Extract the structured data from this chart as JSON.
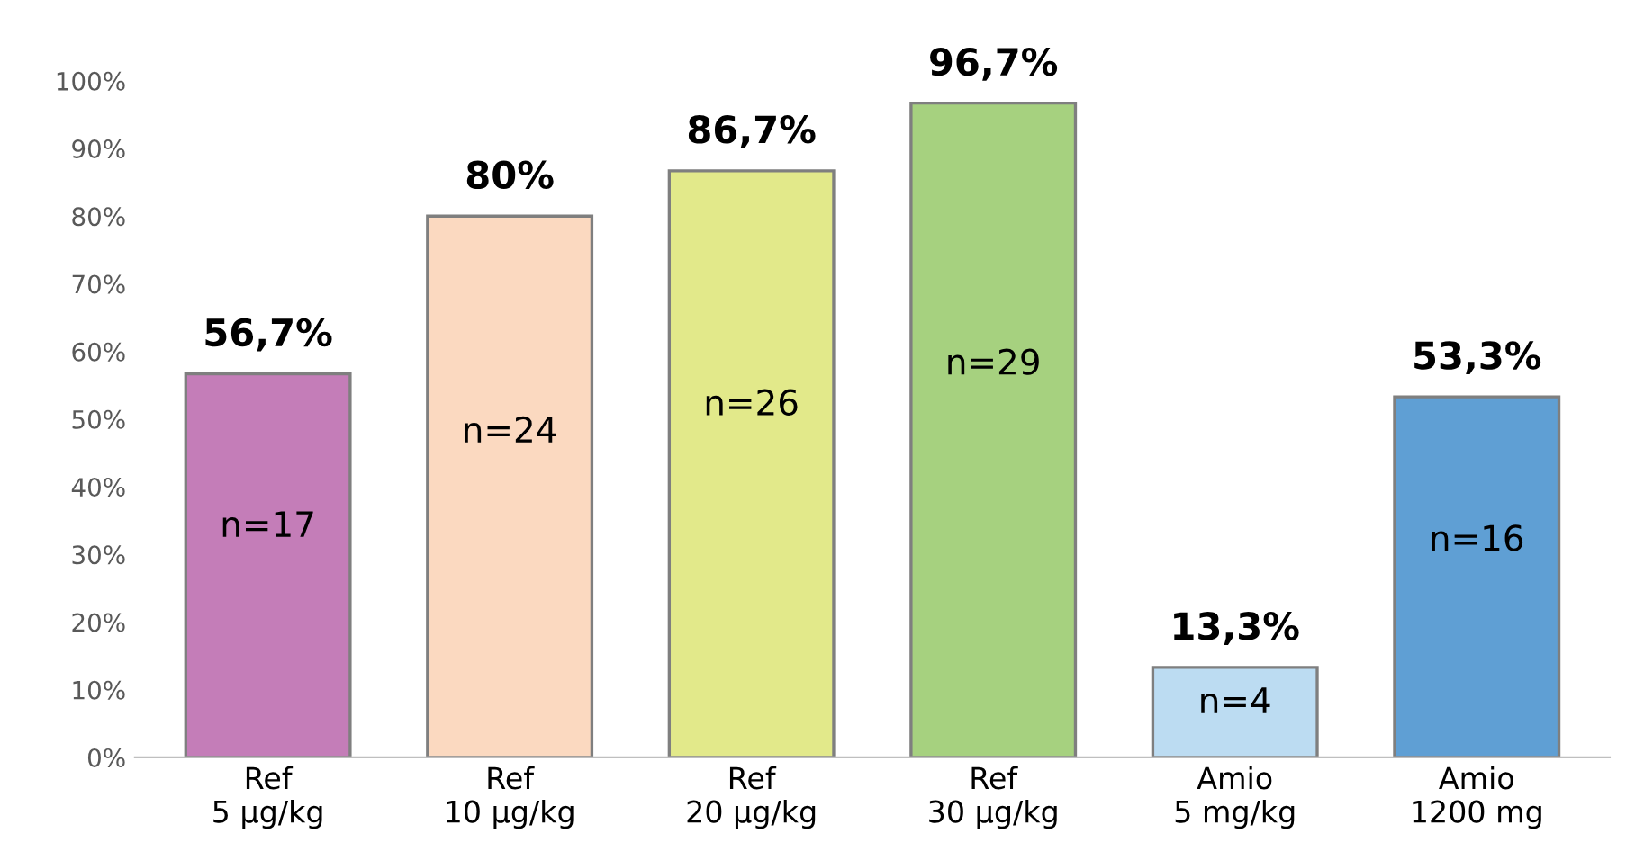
{
  "chart_data": {
    "type": "bar",
    "categories": [
      "Ref\n5 µg/kg",
      "Ref\n10 µg/kg",
      "Ref\n20 µg/kg",
      "Ref\n30 µg/kg",
      "Amio\n5 mg/kg",
      "Amio\n1200 mg"
    ],
    "values": [
      56.7,
      80,
      86.7,
      96.7,
      13.3,
      53.3
    ],
    "colors": [
      "#c47db8",
      "#fbd9c0",
      "#e2e98a",
      "#a6d17f",
      "#bcdcf2",
      "#5f9fd4"
    ],
    "value_labels": [
      "56,7%",
      "80%",
      "86,7%",
      "96,7%",
      "13,3%",
      "53,3%"
    ],
    "ylim": [
      0,
      100
    ],
    "yticks": [
      {
        "value": 0,
        "label": "0%"
      },
      {
        "value": 10,
        "label": "10%"
      },
      {
        "value": 20,
        "label": "20%"
      },
      {
        "value": 30,
        "label": "30%"
      },
      {
        "value": 40,
        "label": "40%"
      },
      {
        "value": 50,
        "label": "50%"
      },
      {
        "value": 60,
        "label": "60%"
      },
      {
        "value": 70,
        "label": "70%"
      },
      {
        "value": 80,
        "label": "80%"
      },
      {
        "value": 90,
        "label": "90%"
      },
      {
        "value": 100,
        "label": "100%"
      }
    ],
    "grid": false,
    "annotations": [
      "n=17",
      "n=24",
      "n=26",
      "n=29",
      "n=4",
      "n=16"
    ]
  }
}
